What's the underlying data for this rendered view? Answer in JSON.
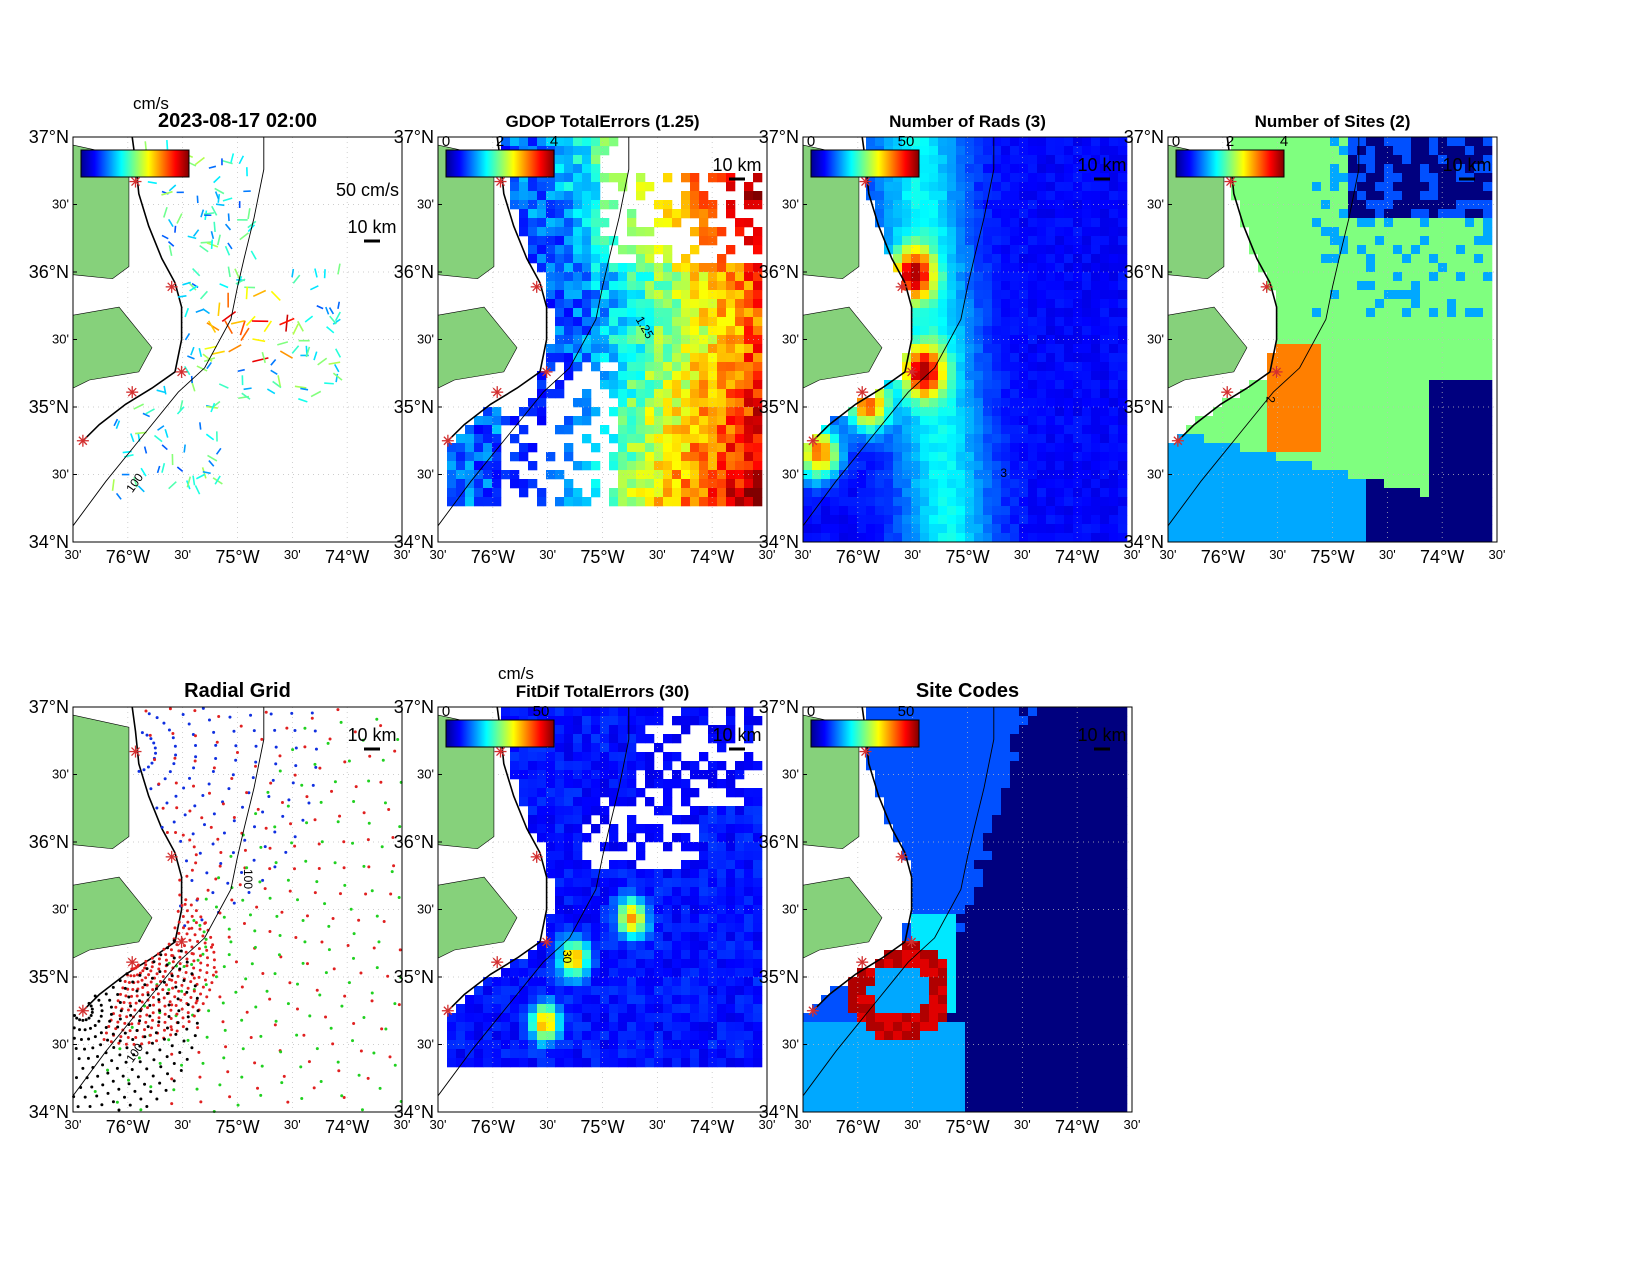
{
  "figure": {
    "tick_labels": {
      "lat": [
        "37°N",
        "30'",
        "36°N",
        "30'",
        "35°N",
        "30'",
        "34°N"
      ],
      "lon": [
        "30'",
        "76°W",
        "30'",
        "75°W",
        "30'",
        "74°W",
        "30'"
      ]
    },
    "scale_bar_label": "10 km",
    "colors": {
      "land": "#86d17b",
      "frame": "#000000",
      "site_marker": "#d32f2f",
      "grid": "#bdbdbd"
    }
  },
  "chart_data": [
    {
      "id": "currents",
      "type": "scatter",
      "title": "2023-08-17 02:00",
      "colorbar": {
        "unit": "cm/s",
        "ticks": []
      },
      "vector_scale_label": "50 cm/s",
      "contour_label": "100",
      "xlim": [
        -76.5,
        -73.5
      ],
      "ylim": [
        34,
        37
      ]
    },
    {
      "id": "gdop",
      "type": "heatmap",
      "title": "GDOP TotalErrors (1.25)",
      "colorbar": {
        "unit": "",
        "ticks": [
          "0",
          "2",
          "4"
        ]
      },
      "contour_label": "1.25",
      "xlim": [
        -76.5,
        -73.5
      ],
      "ylim": [
        34,
        37
      ]
    },
    {
      "id": "rads",
      "type": "heatmap",
      "title": "Number of Rads (3)",
      "colorbar": {
        "unit": "",
        "ticks": [
          "0",
          "50"
        ]
      },
      "contour_label": "3",
      "xlim": [
        -76.5,
        -73.5
      ],
      "ylim": [
        34,
        37
      ]
    },
    {
      "id": "sites",
      "type": "heatmap",
      "title": "Number of Sites (2)",
      "colorbar": {
        "unit": "",
        "ticks": [
          "0",
          "2",
          "4"
        ]
      },
      "contour_label": "2",
      "xlim": [
        -76.5,
        -73.5
      ],
      "ylim": [
        34,
        37
      ]
    },
    {
      "id": "radial-grid",
      "type": "scatter",
      "title": "Radial Grid",
      "contour_label": "100",
      "xlim": [
        -76.5,
        -73.5
      ],
      "ylim": [
        34,
        37
      ]
    },
    {
      "id": "fitdif",
      "type": "heatmap",
      "title": "FitDif TotalErrors (30)",
      "colorbar": {
        "unit": "cm/s",
        "ticks": [
          "0",
          "50"
        ]
      },
      "contour_label": "30",
      "xlim": [
        -76.5,
        -73.5
      ],
      "ylim": [
        34,
        37
      ]
    },
    {
      "id": "site-codes",
      "type": "heatmap",
      "title": "Site Codes",
      "colorbar": {
        "unit": "",
        "ticks": [
          "0",
          "50"
        ]
      },
      "xlim": [
        -76.5,
        -73.5
      ],
      "ylim": [
        34,
        37
      ]
    }
  ]
}
